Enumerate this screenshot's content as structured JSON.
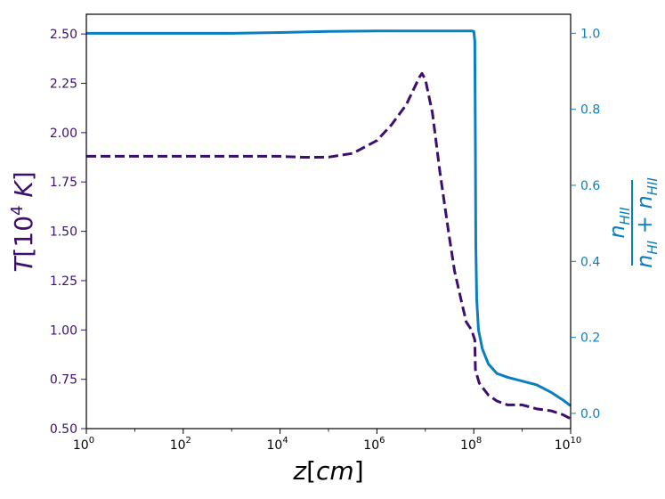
{
  "chart_data": {
    "type": "line",
    "xscale": "log",
    "xlim": [
      1,
      10000000000
    ],
    "grid": false,
    "legend": "none",
    "xlabel": {
      "var": "z",
      "unit": "cm"
    },
    "ylabel_left": {
      "var": "T",
      "unit_base": "10",
      "unit_exp": "4",
      "unit_suffix": " K"
    },
    "ylabel_right": {
      "numerator": "n",
      "num_sub": "HII",
      "den_a": "n",
      "den_a_sub": "HI",
      "den_plus": " + ",
      "den_b": "n",
      "den_b_sub": "HII"
    },
    "x_ticks": [
      {
        "value": 1,
        "base": "10",
        "exp": "0"
      },
      {
        "value": 100,
        "base": "10",
        "exp": "2"
      },
      {
        "value": 10000,
        "base": "10",
        "exp": "4"
      },
      {
        "value": 1000000,
        "base": "10",
        "exp": "6"
      },
      {
        "value": 100000000,
        "base": "10",
        "exp": "8"
      },
      {
        "value": 10000000000,
        "base": "10",
        "exp": "10"
      }
    ],
    "ylim_left": [
      0.5,
      2.6
    ],
    "yticks_left": [
      "0.50",
      "0.75",
      "1.00",
      "1.25",
      "1.50",
      "1.75",
      "2.00",
      "2.25",
      "2.50"
    ],
    "ylim_right": [
      -0.04,
      1.05
    ],
    "yticks_right": [
      "0.0",
      "0.2",
      "0.4",
      "0.6",
      "0.8",
      "1.0"
    ],
    "colors": {
      "left": "#3b0f6f",
      "right": "#0a7fc0"
    },
    "series": [
      {
        "axis": "left",
        "style": "dashed",
        "color": "#3b0f6f",
        "x": [
          1,
          10,
          100,
          1000,
          10000,
          31623,
          100000,
          316228,
          1000000,
          2000000,
          4000000,
          6000000,
          7500000,
          8500000,
          10000000,
          14000000,
          20000000,
          30000000,
          40000000,
          55000000,
          70000000,
          90000000,
          105000000,
          108000000,
          110000000,
          130000000,
          200000000,
          300000000,
          500000000,
          1000000000,
          2000000000,
          4000000000,
          7000000000,
          10000000000
        ],
        "y": [
          1.88,
          1.88,
          1.88,
          1.88,
          1.88,
          1.875,
          1.876,
          1.895,
          1.96,
          2.04,
          2.14,
          2.23,
          2.28,
          2.3,
          2.27,
          2.1,
          1.8,
          1.5,
          1.3,
          1.15,
          1.04,
          1.0,
          0.95,
          0.8,
          0.79,
          0.73,
          0.67,
          0.64,
          0.62,
          0.62,
          0.6,
          0.59,
          0.57,
          0.55
        ]
      },
      {
        "axis": "right",
        "style": "solid",
        "color": "#0a7fc0",
        "x": [
          1,
          10,
          100,
          1000,
          10000,
          100000,
          1000000,
          10000000,
          50000000,
          90000000,
          100000000,
          105000000,
          108000000,
          110000000,
          115000000,
          125000000,
          150000000,
          200000000,
          300000000,
          500000000,
          1000000000,
          2000000000,
          4000000000,
          7000000000,
          10000000000
        ],
        "y": [
          1.0,
          1.0,
          1.0,
          1.0,
          1.002,
          1.005,
          1.006,
          1.006,
          1.006,
          1.006,
          1.005,
          0.98,
          0.7,
          0.45,
          0.3,
          0.22,
          0.17,
          0.13,
          0.105,
          0.095,
          0.085,
          0.075,
          0.055,
          0.035,
          0.02
        ]
      }
    ]
  }
}
